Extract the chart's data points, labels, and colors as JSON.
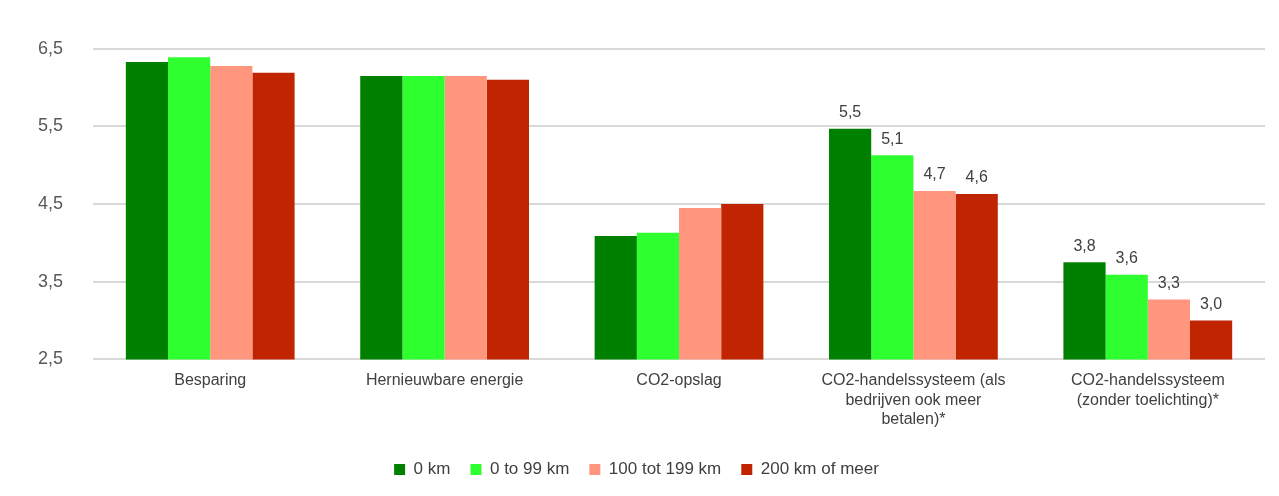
{
  "chart_data": {
    "type": "bar",
    "categories": [
      "Besparing",
      "Hernieuwbare energie",
      "CO2-opslag",
      "CO2-handelssysteem (als bedrijven ook meer betalen)*",
      "CO2-handelssysteem (zonder toelichting)*"
    ],
    "series": [
      {
        "name": "0 km",
        "color": "#008000",
        "values": [
          6.33,
          6.15,
          4.09,
          5.47,
          3.75
        ],
        "value_labels": [
          null,
          null,
          null,
          "5,5",
          "3,8"
        ]
      },
      {
        "name": "0 to 99 km",
        "color": "#2eff2e",
        "values": [
          6.39,
          6.15,
          4.13,
          5.13,
          3.59
        ],
        "value_labels": [
          null,
          null,
          null,
          "5,1",
          "3,6"
        ]
      },
      {
        "name": "100 tot 199 km",
        "color": "#ff967d",
        "values": [
          6.28,
          6.15,
          4.45,
          4.67,
          3.27
        ],
        "value_labels": [
          null,
          null,
          null,
          "4,7",
          "3,3"
        ]
      },
      {
        "name": "200 km of meer",
        "color": "#c02400",
        "values": [
          6.19,
          6.1,
          4.5,
          4.63,
          3.0
        ],
        "value_labels": [
          null,
          null,
          null,
          "4,6",
          "3,0"
        ]
      }
    ],
    "ylim": [
      2.5,
      6.5
    ],
    "yticks": [
      {
        "value": 2.5,
        "label": "2,5"
      },
      {
        "value": 3.5,
        "label": "3,5"
      },
      {
        "value": 4.5,
        "label": "4,5"
      },
      {
        "value": 5.5,
        "label": "5,5"
      },
      {
        "value": 6.5,
        "label": "6,5"
      }
    ],
    "grid": "y",
    "legend": "bottom"
  }
}
